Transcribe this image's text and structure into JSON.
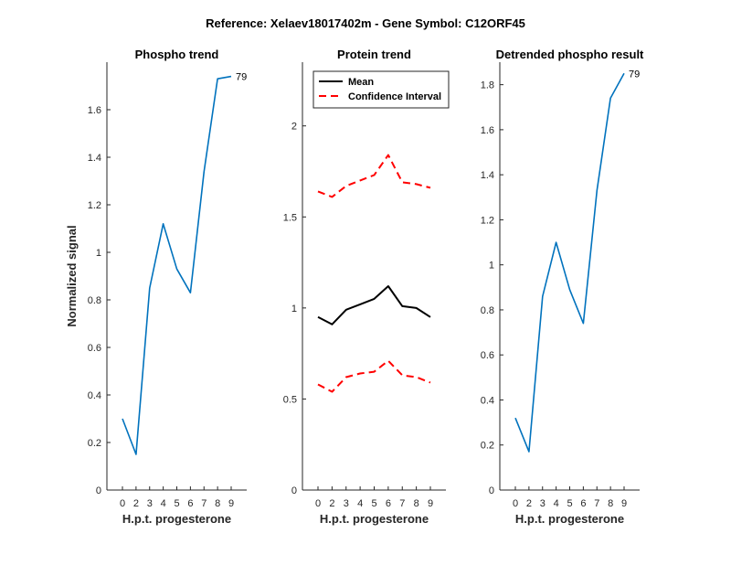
{
  "figure": {
    "title": "Reference:  Xelaev18017402m - Gene Symbol:  C12ORF45"
  },
  "colors": {
    "series_blue": "#0072BD",
    "mean_black": "#000000",
    "ci_red": "#FF0000",
    "axis": "#262626"
  },
  "chart_data": [
    {
      "type": "line",
      "title": "Phospho trend",
      "xlabel": "H.p.t. progesterone",
      "ylabel": "Normalized signal",
      "x_ticks": [
        "0",
        "2",
        "3",
        "4",
        "5",
        "6",
        "7",
        "8",
        "9"
      ],
      "y_ticks": [
        "0",
        "0.2",
        "0.4",
        "0.6",
        "0.8",
        "1",
        "1.2",
        "1.4",
        "1.6"
      ],
      "ylim": [
        0,
        1.8
      ],
      "annotation": "79",
      "series": [
        {
          "values": [
            0.3,
            0.15,
            0.85,
            1.12,
            0.93,
            0.83,
            1.34,
            1.73,
            1.74
          ]
        }
      ]
    },
    {
      "type": "line",
      "title": "Protein trend",
      "xlabel": "H.p.t. progesterone",
      "ylabel": "",
      "x_ticks": [
        "0",
        "2",
        "3",
        "4",
        "5",
        "6",
        "7",
        "8",
        "9"
      ],
      "y_ticks": [
        "0",
        "0.5",
        "1",
        "1.5",
        "2"
      ],
      "ylim": [
        0,
        2.35
      ],
      "legend_position": "top-left",
      "series": [
        {
          "name": "Mean",
          "style": "solid",
          "values": [
            0.95,
            0.91,
            0.99,
            1.02,
            1.05,
            1.12,
            1.01,
            1.0,
            0.95
          ]
        },
        {
          "name": "Confidence Interval",
          "style": "dashed",
          "values": [
            1.64,
            1.61,
            1.67,
            1.7,
            1.73,
            1.84,
            1.69,
            1.68,
            1.66
          ]
        },
        {
          "style": "dashed",
          "values": [
            0.58,
            0.54,
            0.62,
            0.64,
            0.65,
            0.71,
            0.63,
            0.62,
            0.59
          ]
        }
      ]
    },
    {
      "type": "line",
      "title": "Detrended phospho result",
      "xlabel": "H.p.t. progesterone",
      "ylabel": "",
      "x_ticks": [
        "0",
        "2",
        "3",
        "4",
        "5",
        "6",
        "7",
        "8",
        "9"
      ],
      "y_ticks": [
        "0",
        "0.2",
        "0.4",
        "0.6",
        "0.8",
        "1",
        "1.2",
        "1.4",
        "1.6",
        "1.8"
      ],
      "ylim": [
        0,
        1.9
      ],
      "annotation": "79",
      "series": [
        {
          "values": [
            0.32,
            0.17,
            0.86,
            1.1,
            0.89,
            0.74,
            1.33,
            1.74,
            1.85
          ]
        }
      ]
    }
  ]
}
